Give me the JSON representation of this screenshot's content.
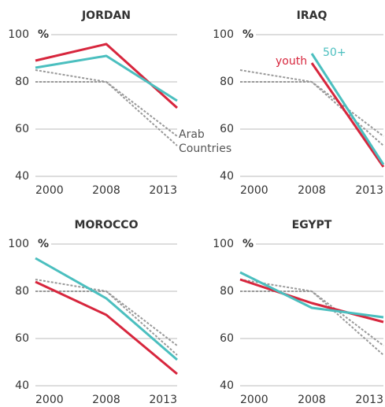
{
  "chart_data": [
    {
      "type": "line",
      "title": "JORDAN",
      "categories": [
        "2000",
        "2008",
        "2013"
      ],
      "ylim": [
        40,
        100
      ],
      "yticks": [
        40,
        60,
        80,
        100
      ],
      "y_unit": "%",
      "grid": true,
      "series": [
        {
          "color": "#999999",
          "dashed": true,
          "values": [
            85,
            80,
            53
          ]
        },
        {
          "color": "#999999",
          "dashed": true,
          "values": [
            80,
            80,
            57
          ]
        },
        {
          "color": "#d7263d",
          "values": [
            89,
            96,
            69
          ]
        },
        {
          "color": "#4bbfbf",
          "values": [
            86,
            91,
            72
          ]
        }
      ],
      "annotations": [
        {
          "text": "Arab",
          "color": "#555555"
        },
        {
          "text": "Countries",
          "color": "#555555"
        }
      ]
    },
    {
      "type": "line",
      "title": "IRAQ",
      "categories": [
        "2000",
        "2008",
        "2013"
      ],
      "ylim": [
        40,
        100
      ],
      "yticks": [
        40,
        60,
        80,
        100
      ],
      "y_unit": "%",
      "grid": true,
      "series": [
        {
          "color": "#999999",
          "dashed": true,
          "values": [
            85,
            80,
            53
          ]
        },
        {
          "color": "#999999",
          "dashed": true,
          "values": [
            80,
            80,
            57
          ]
        },
        {
          "color": "#d7263d",
          "values": [
            null,
            88,
            44
          ]
        },
        {
          "color": "#4bbfbf",
          "values": [
            null,
            92,
            45
          ]
        }
      ],
      "annotations": [
        {
          "text": "youth",
          "color": "#d7263d"
        },
        {
          "text": "50+",
          "color": "#4bbfbf"
        }
      ]
    },
    {
      "type": "line",
      "title": "MOROCCO",
      "categories": [
        "2000",
        "2008",
        "2013"
      ],
      "ylim": [
        40,
        100
      ],
      "yticks": [
        40,
        60,
        80,
        100
      ],
      "y_unit": "%",
      "grid": true,
      "series": [
        {
          "color": "#999999",
          "dashed": true,
          "values": [
            85,
            80,
            53
          ]
        },
        {
          "color": "#999999",
          "dashed": true,
          "values": [
            80,
            80,
            57
          ]
        },
        {
          "color": "#d7263d",
          "values": [
            84,
            70,
            45
          ]
        },
        {
          "color": "#4bbfbf",
          "values": [
            94,
            77,
            51
          ]
        }
      ]
    },
    {
      "type": "line",
      "title": "EGYPT",
      "categories": [
        "2000",
        "2008",
        "2013"
      ],
      "ylim": [
        40,
        100
      ],
      "yticks": [
        40,
        60,
        80,
        100
      ],
      "y_unit": "%",
      "grid": true,
      "series": [
        {
          "color": "#999999",
          "dashed": true,
          "values": [
            85,
            80,
            53
          ]
        },
        {
          "color": "#999999",
          "dashed": true,
          "values": [
            80,
            80,
            57
          ]
        },
        {
          "color": "#d7263d",
          "values": [
            85,
            75,
            67
          ]
        },
        {
          "color": "#4bbfbf",
          "values": [
            88,
            73,
            69
          ]
        }
      ]
    }
  ]
}
